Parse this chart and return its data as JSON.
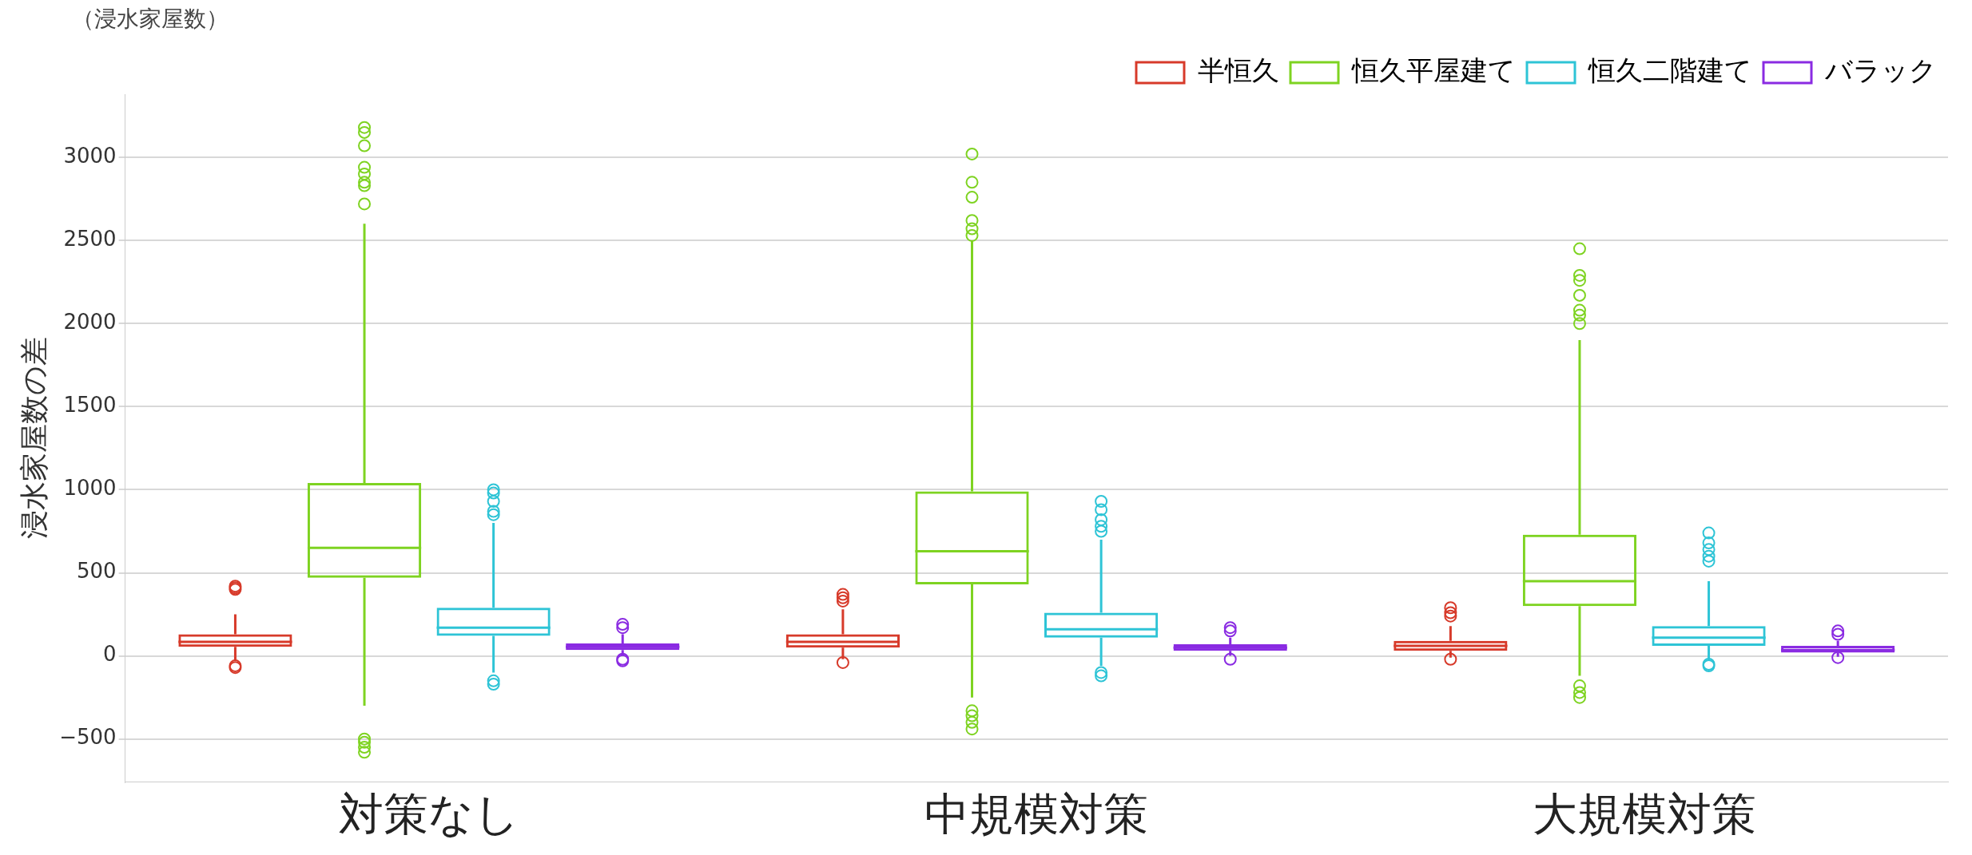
{
  "chart_data": {
    "type": "box",
    "ylabel": "浸水家屋数の差",
    "annotations": [
      "（浸水家屋数）"
    ],
    "categories": [
      "対策なし",
      "中規模対策",
      "大規模対策"
    ],
    "ylim": [
      -760,
      3380
    ],
    "yticks": [
      -500,
      0,
      500,
      1000,
      1500,
      2000,
      2500,
      3000
    ],
    "grid": "y",
    "legend": "top right",
    "series": [
      {
        "name": "半恒久",
        "color": "#d73a2a",
        "boxes": [
          {
            "low": -30,
            "q1": 55,
            "median": 85,
            "q3": 130,
            "high": 250,
            "outliers": [
              420,
              410,
              400,
              -60,
              -70
            ]
          },
          {
            "low": -20,
            "q1": 50,
            "median": 85,
            "q3": 130,
            "high": 280,
            "outliers": [
              370,
              350,
              330,
              -40
            ]
          },
          {
            "low": -10,
            "q1": 30,
            "median": 60,
            "q3": 90,
            "high": 180,
            "outliers": [
              290,
              260,
              240,
              -20
            ]
          }
        ]
      },
      {
        "name": "恒久平屋建て",
        "color": "#7ed321",
        "boxes": [
          {
            "low": -300,
            "q1": 470,
            "median": 650,
            "q3": 1040,
            "high": 2600,
            "outliers": [
              3180,
              3150,
              3070,
              2940,
              2900,
              2850,
              2830,
              2720,
              -500,
              -520,
              -550,
              -580
            ]
          },
          {
            "low": -250,
            "q1": 430,
            "median": 630,
            "q3": 990,
            "high": 2500,
            "outliers": [
              3020,
              2850,
              2760,
              2620,
              2570,
              2530,
              -330,
              -360,
              -400,
              -440
            ]
          },
          {
            "low": -120,
            "q1": 300,
            "median": 450,
            "q3": 730,
            "high": 1900,
            "outliers": [
              2450,
              2290,
              2260,
              2170,
              2080,
              2050,
              2000,
              -180,
              -220,
              -250
            ]
          }
        ]
      },
      {
        "name": "恒久二階建て",
        "color": "#2ec4d6",
        "boxes": [
          {
            "low": -100,
            "q1": 120,
            "median": 170,
            "q3": 290,
            "high": 800,
            "outliers": [
              1000,
              980,
              930,
              870,
              850,
              -150,
              -170
            ]
          },
          {
            "low": -60,
            "q1": 110,
            "median": 160,
            "q3": 260,
            "high": 700,
            "outliers": [
              930,
              880,
              820,
              780,
              750,
              -100,
              -120
            ]
          },
          {
            "low": -30,
            "q1": 60,
            "median": 110,
            "q3": 180,
            "high": 450,
            "outliers": [
              740,
              680,
              640,
              600,
              570,
              -50,
              -60
            ]
          }
        ]
      },
      {
        "name": "バラック",
        "color": "#8a2be2",
        "boxes": [
          {
            "low": 0,
            "q1": 35,
            "median": 55,
            "q3": 75,
            "high": 130,
            "outliers": [
              190,
              170,
              -20,
              -30
            ]
          },
          {
            "low": 0,
            "q1": 30,
            "median": 50,
            "q3": 70,
            "high": 110,
            "outliers": [
              170,
              150,
              -20
            ]
          },
          {
            "low": -5,
            "q1": 20,
            "median": 35,
            "q3": 60,
            "high": 90,
            "outliers": [
              150,
              130,
              -10
            ]
          }
        ]
      }
    ]
  }
}
